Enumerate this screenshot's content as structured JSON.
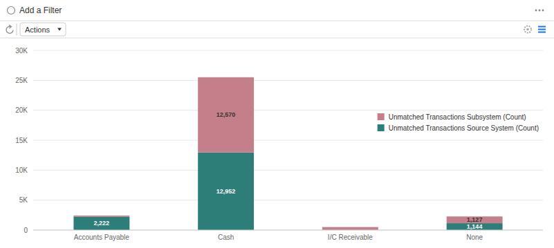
{
  "chart_data": {
    "type": "bar",
    "stacked": true,
    "annotations": [
      "Add a Filter",
      "Actions"
    ],
    "categories": [
      "Accounts Payable",
      "Cash",
      "I/C Receivable",
      "None"
    ],
    "series": [
      {
        "name": "Unmatched Transactions Source System (Count)",
        "color": "#2d7d79",
        "values": [
          2222,
          12952,
          0,
          1144
        ],
        "value_labels": [
          "2,222",
          "12,952",
          null,
          "1,144"
        ]
      },
      {
        "name": "Unmatched Transactions Subsystem (Count)",
        "color": "#c47f8a",
        "values": [
          200,
          12570,
          500,
          1127
        ],
        "value_labels": [
          null,
          "12,570",
          null,
          "1,127"
        ]
      }
    ],
    "ylim": [
      0,
      30000
    ],
    "yticks": [
      0,
      {
        "value": 5000,
        "label": "5K"
      },
      {
        "value": 10000,
        "label": "10K"
      },
      {
        "value": 15000,
        "label": "15K"
      },
      {
        "value": 20000,
        "label": "20K"
      },
      {
        "value": 25000,
        "label": "25K"
      },
      {
        "value": 30000,
        "label": "30K"
      }
    ],
    "grid": true,
    "legend": "right",
    "data_labels": true
  }
}
